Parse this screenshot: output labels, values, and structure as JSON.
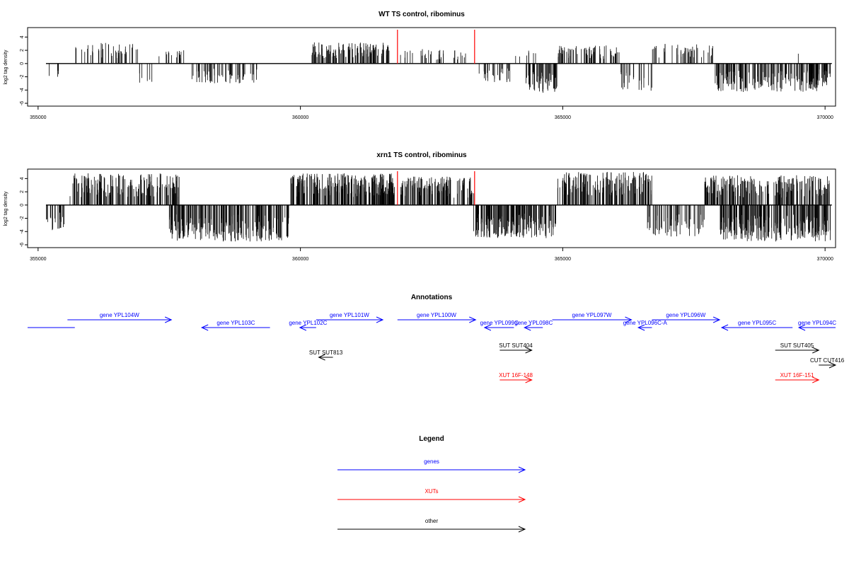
{
  "chart_data": [
    {
      "type": "bar",
      "title": "WT TS control, ribominus",
      "ylabel": "log2 tag density",
      "xlim": [
        354800,
        370200
      ],
      "ylim": [
        -6,
        5
      ],
      "x_ticks": [
        "355000",
        "360000",
        "365000",
        "370000"
      ],
      "y_ticks": [
        "4",
        "2",
        "0",
        "-2",
        "-4",
        "-6"
      ],
      "marker_lines_x": [
        361850,
        363320
      ],
      "marker_color": "#ff0000",
      "density_regions": [
        {
          "from": 355150,
          "to": 355500,
          "sign": -1,
          "amp": 2.0,
          "density": 0.15
        },
        {
          "from": 355700,
          "to": 356900,
          "sign": 1,
          "amp": 3.2,
          "density": 0.5
        },
        {
          "from": 356900,
          "to": 357300,
          "sign": -1,
          "amp": 3.0,
          "density": 0.2
        },
        {
          "from": 357300,
          "to": 357900,
          "sign": 1,
          "amp": 2.0,
          "density": 0.35
        },
        {
          "from": 357900,
          "to": 359200,
          "sign": -1,
          "amp": 3.0,
          "density": 0.6
        },
        {
          "from": 360200,
          "to": 361700,
          "sign": 1,
          "amp": 3.2,
          "density": 1.0
        },
        {
          "from": 361900,
          "to": 363200,
          "sign": 1,
          "amp": 2.2,
          "density": 0.35
        },
        {
          "from": 363400,
          "to": 364000,
          "sign": -1,
          "amp": 2.8,
          "density": 0.6
        },
        {
          "from": 364000,
          "to": 364500,
          "sign": 1,
          "amp": 2.0,
          "density": 0.2
        },
        {
          "from": 364300,
          "to": 364900,
          "sign": -1,
          "amp": 4.5,
          "density": 1.2
        },
        {
          "from": 364900,
          "to": 366100,
          "sign": 1,
          "amp": 2.8,
          "density": 0.8
        },
        {
          "from": 366100,
          "to": 366700,
          "sign": -1,
          "amp": 4.2,
          "density": 0.5
        },
        {
          "from": 366700,
          "to": 367900,
          "sign": 1,
          "amp": 3.0,
          "density": 0.5
        },
        {
          "from": 367900,
          "to": 369900,
          "sign": -1,
          "amp": 4.3,
          "density": 1.1
        },
        {
          "from": 369400,
          "to": 369600,
          "sign": 1,
          "amp": 2.8,
          "density": 0.1
        },
        {
          "from": 369700,
          "to": 370100,
          "sign": -1,
          "amp": 3.5,
          "density": 1.2
        }
      ]
    },
    {
      "type": "bar",
      "title": "xrn1 TS control, ribominus",
      "ylabel": "log2 tag density",
      "xlim": [
        354800,
        370200
      ],
      "ylim": [
        -6,
        5
      ],
      "x_ticks": [
        "355000",
        "360000",
        "365000",
        "370000"
      ],
      "y_ticks": [
        "4",
        "2",
        "0",
        "-2",
        "-4",
        "-6"
      ],
      "marker_lines_x": [
        361850,
        363320
      ],
      "marker_color": "#ff0000",
      "density_regions": [
        {
          "from": 355150,
          "to": 355500,
          "sign": -1,
          "amp": 4.0,
          "density": 0.8
        },
        {
          "from": 355600,
          "to": 357700,
          "sign": 1,
          "amp": 4.8,
          "density": 1.1
        },
        {
          "from": 357500,
          "to": 359800,
          "sign": -1,
          "amp": 5.5,
          "density": 1.2
        },
        {
          "from": 359800,
          "to": 361800,
          "sign": 1,
          "amp": 4.8,
          "density": 1.6
        },
        {
          "from": 361900,
          "to": 363300,
          "sign": 1,
          "amp": 4.3,
          "density": 1.2
        },
        {
          "from": 363300,
          "to": 364900,
          "sign": -1,
          "amp": 5.0,
          "density": 1.4
        },
        {
          "from": 364900,
          "to": 366700,
          "sign": 1,
          "amp": 5.0,
          "density": 1.3
        },
        {
          "from": 366600,
          "to": 367700,
          "sign": -1,
          "amp": 4.8,
          "density": 0.7
        },
        {
          "from": 367700,
          "to": 370100,
          "sign": 1,
          "amp": 4.5,
          "density": 1.2
        },
        {
          "from": 368000,
          "to": 370100,
          "sign": -1,
          "amp": 5.5,
          "density": 1.6
        }
      ]
    }
  ],
  "annotations": {
    "title": "Annotations",
    "features": [
      {
        "label": "",
        "start": 354800,
        "end": 355700,
        "strand": "none",
        "row": 1,
        "color": "#0000ff"
      },
      {
        "label": "gene YPL104W",
        "start": 355560,
        "end": 357540,
        "strand": "+",
        "row": 0,
        "color": "#0000ff"
      },
      {
        "label": "gene YPL103C",
        "start": 358120,
        "end": 359420,
        "strand": "-",
        "row": 1,
        "color": "#0000ff"
      },
      {
        "label": "gene YPL102C",
        "start": 359990,
        "end": 360300,
        "strand": "-",
        "row": 1,
        "color": "#0000ff"
      },
      {
        "label": "gene YPL101W",
        "start": 360300,
        "end": 361570,
        "strand": "+",
        "row": 0,
        "color": "#0000ff"
      },
      {
        "label": "gene YPL100W",
        "start": 361850,
        "end": 363340,
        "strand": "+",
        "row": 0,
        "color": "#0000ff"
      },
      {
        "label": "gene YPL099C",
        "start": 363510,
        "end": 364070,
        "strand": "-",
        "row": 1,
        "color": "#0000ff"
      },
      {
        "label": "gene YPL098C",
        "start": 364270,
        "end": 364620,
        "strand": "-",
        "row": 1,
        "color": "#0000ff"
      },
      {
        "label": "gene YPL097W",
        "start": 364800,
        "end": 366310,
        "strand": "+",
        "row": 0,
        "color": "#0000ff"
      },
      {
        "label": "gene YPL096C-A",
        "start": 366440,
        "end": 366700,
        "strand": "-",
        "row": 1,
        "color": "#0000ff"
      },
      {
        "label": "gene YPL096W",
        "start": 366700,
        "end": 367990,
        "strand": "+",
        "row": 0,
        "color": "#0000ff"
      },
      {
        "label": "gene YPL095C",
        "start": 368030,
        "end": 369380,
        "strand": "-",
        "row": 1,
        "color": "#0000ff"
      },
      {
        "label": "gene YPL094C",
        "start": 369500,
        "end": 370200,
        "strand": "-",
        "row": 1,
        "color": "#0000ff"
      },
      {
        "label": "SUT SUT813",
        "start": 360350,
        "end": 360620,
        "strand": "-",
        "row": 3,
        "color": "#000000"
      },
      {
        "label": "SUT SUT404",
        "start": 363800,
        "end": 364410,
        "strand": "+",
        "row": 2,
        "color": "#000000"
      },
      {
        "label": "SUT SUT405",
        "start": 369050,
        "end": 369880,
        "strand": "+",
        "row": 2,
        "color": "#000000"
      },
      {
        "label": "CUT CUT416",
        "start": 369880,
        "end": 370200,
        "strand": "+",
        "row": 4,
        "color": "#000000"
      },
      {
        "label": "XUT 16F-148",
        "start": 363800,
        "end": 364410,
        "strand": "+",
        "row": 5,
        "color": "#ff0000"
      },
      {
        "label": "XUT 16F-151",
        "start": 369050,
        "end": 369880,
        "strand": "+",
        "row": 5,
        "color": "#ff0000"
      }
    ]
  },
  "legend": {
    "title": "Legend",
    "items": [
      {
        "label": "genes",
        "color": "#0000ff"
      },
      {
        "label": "XUTs",
        "color": "#ff0000"
      },
      {
        "label": "other",
        "color": "#000000"
      }
    ]
  }
}
